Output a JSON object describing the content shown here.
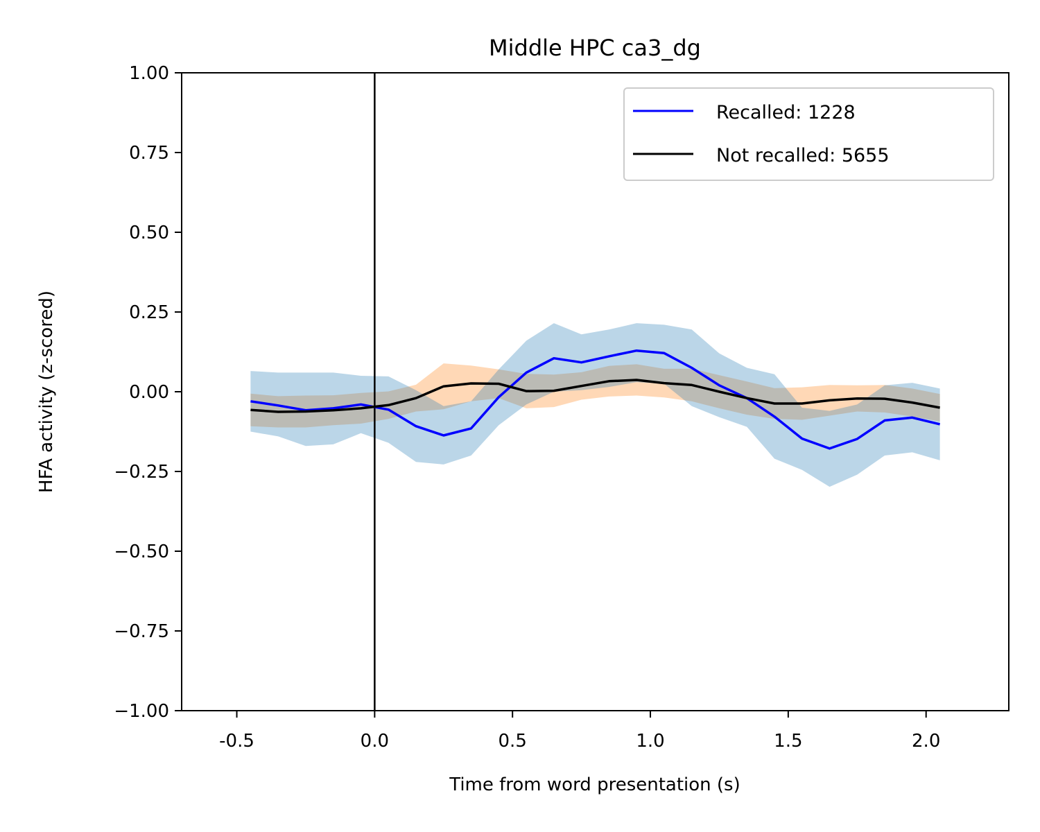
{
  "chart_data": {
    "type": "line",
    "title": "Middle HPC ca3_dg",
    "xlabel": "Time from word presentation (s)",
    "ylabel": "HFA activity (z-scored)",
    "xlim": [
      -0.7,
      2.3
    ],
    "ylim": [
      -1.0,
      1.0
    ],
    "x_ticks": [
      -0.5,
      0.0,
      0.5,
      1.0,
      1.5,
      2.0
    ],
    "x_tick_labels": [
      "-0.5",
      "0.0",
      "0.5",
      "1.0",
      "1.5",
      "2.0"
    ],
    "y_ticks": [
      1.0,
      0.75,
      0.5,
      0.25,
      0.0,
      -0.25,
      -0.5,
      -0.75,
      -1.0
    ],
    "y_tick_labels": [
      "1.00",
      "0.75",
      "0.50",
      "0.25",
      "0.00",
      "−0.25",
      "−0.50",
      "−0.75",
      "−1.00"
    ],
    "grid": false,
    "legend_position": "top-right",
    "vertical_line_x": 0.0,
    "x": [
      -0.45,
      -0.35,
      -0.25,
      -0.15,
      -0.05,
      0.05,
      0.15,
      0.25,
      0.35,
      0.45,
      0.55,
      0.65,
      0.75,
      0.85,
      0.95,
      1.05,
      1.15,
      1.25,
      1.35,
      1.45,
      1.55,
      1.65,
      1.75,
      1.85,
      1.95,
      2.05
    ],
    "series": [
      {
        "name": "Recalled: 1228",
        "color": "#0000ff",
        "band_color": "#1f77b4",
        "values": [
          -0.03,
          -0.043,
          -0.058,
          -0.052,
          -0.04,
          -0.056,
          -0.108,
          -0.137,
          -0.115,
          -0.017,
          0.06,
          0.105,
          0.092,
          0.111,
          0.129,
          0.121,
          0.075,
          0.02,
          -0.02,
          -0.078,
          -0.147,
          -0.178,
          -0.148,
          -0.09,
          -0.081,
          -0.102
        ],
        "lower": [
          -0.125,
          -0.14,
          -0.17,
          -0.165,
          -0.13,
          -0.16,
          -0.22,
          -0.228,
          -0.2,
          -0.105,
          -0.04,
          0.0,
          0.005,
          0.015,
          0.03,
          0.025,
          -0.045,
          -0.08,
          -0.11,
          -0.21,
          -0.245,
          -0.298,
          -0.26,
          -0.2,
          -0.19,
          -0.215
        ],
        "upper": [
          0.065,
          0.06,
          0.06,
          0.06,
          0.05,
          0.048,
          0.005,
          -0.045,
          -0.03,
          0.07,
          0.16,
          0.215,
          0.18,
          0.195,
          0.215,
          0.21,
          0.195,
          0.12,
          0.075,
          0.055,
          -0.05,
          -0.06,
          -0.04,
          0.02,
          0.028,
          0.01
        ]
      },
      {
        "name": "Not recalled: 5655",
        "color": "#000000",
        "band_color": "#ff7f0e",
        "values": [
          -0.057,
          -0.063,
          -0.062,
          -0.058,
          -0.052,
          -0.042,
          -0.02,
          0.017,
          0.026,
          0.025,
          0.002,
          0.003,
          0.018,
          0.033,
          0.037,
          0.027,
          0.021,
          0.0,
          -0.02,
          -0.037,
          -0.037,
          -0.027,
          -0.021,
          -0.022,
          -0.034,
          -0.05
        ],
        "lower": [
          -0.108,
          -0.112,
          -0.112,
          -0.105,
          -0.1,
          -0.085,
          -0.062,
          -0.055,
          -0.03,
          -0.02,
          -0.052,
          -0.048,
          -0.025,
          -0.015,
          -0.012,
          -0.018,
          -0.03,
          -0.052,
          -0.072,
          -0.085,
          -0.088,
          -0.075,
          -0.062,
          -0.065,
          -0.078,
          -0.093
        ]
      }
    ]
  }
}
